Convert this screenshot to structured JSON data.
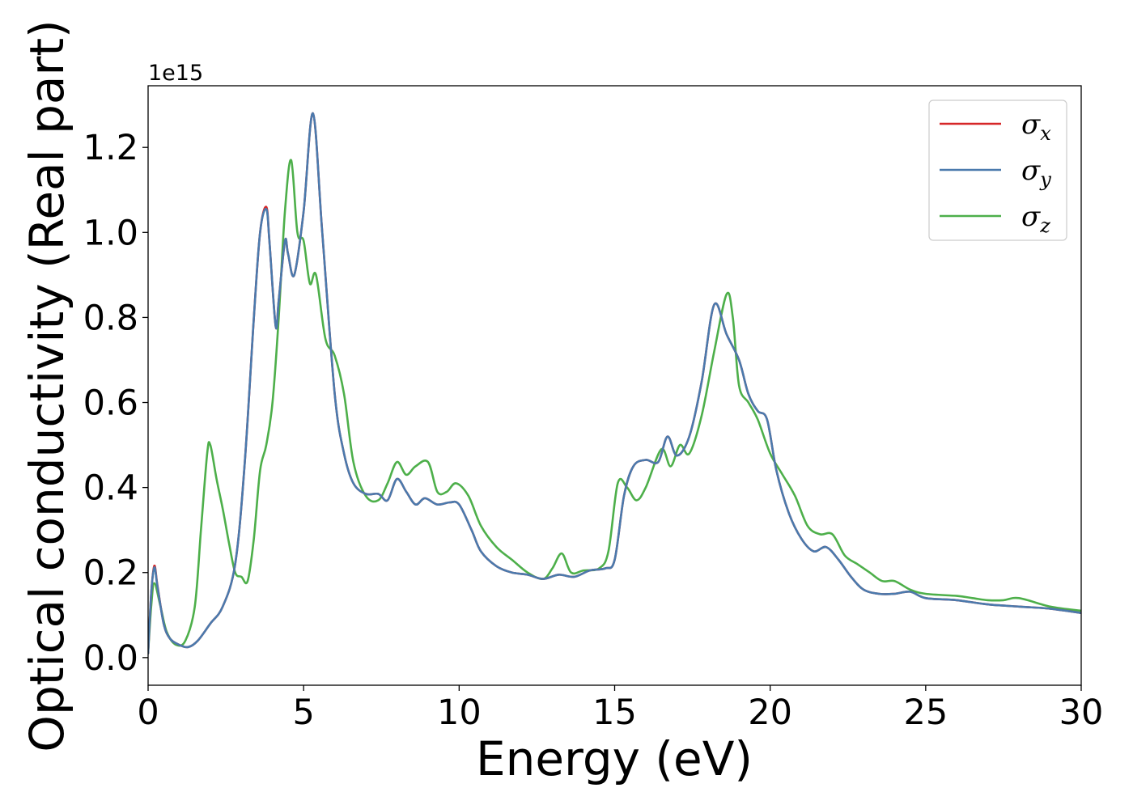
{
  "chart_data": {
    "type": "line",
    "xlabel": "Energy (eV)",
    "ylabel": "Optical conductivity (Real part)",
    "y_offset_label": "1e15",
    "xlim": [
      0,
      30
    ],
    "ylim": [
      -0.065,
      1.345
    ],
    "x_ticks": [
      0,
      5,
      10,
      15,
      20,
      25,
      30
    ],
    "x_tick_labels": [
      "0",
      "5",
      "10",
      "15",
      "20",
      "25",
      "30"
    ],
    "y_ticks": [
      0.0,
      0.2,
      0.4,
      0.6,
      0.8,
      1.0,
      1.2
    ],
    "y_tick_labels": [
      "0.0",
      "0.2",
      "0.4",
      "0.6",
      "0.8",
      "1.0",
      "1.2"
    ],
    "grid": false,
    "legend_position": "top-right",
    "series": [
      {
        "name": "σx",
        "symbol": "σ",
        "subscript": "x",
        "color": "#d62728",
        "x": [
          0,
          0.1,
          0.2,
          0.3,
          0.5,
          0.7,
          1.0,
          1.3,
          1.6,
          2.0,
          2.4,
          2.8,
          3.1,
          3.4,
          3.6,
          3.8,
          3.9,
          4.1,
          4.2,
          4.4,
          4.5,
          4.7,
          5.0,
          5.3,
          5.6,
          6.0,
          6.3,
          6.6,
          7.0,
          7.4,
          7.7,
          8.0,
          8.3,
          8.6,
          8.9,
          9.3,
          9.7,
          10.0,
          10.4,
          10.7,
          11.2,
          11.7,
          12.2,
          12.7,
          13.2,
          13.7,
          14.2,
          14.7,
          15.0,
          15.3,
          15.6,
          16.0,
          16.4,
          16.7,
          17.0,
          17.4,
          17.8,
          18.2,
          18.6,
          19.0,
          19.3,
          19.6,
          19.9,
          20.2,
          20.6,
          21.0,
          21.4,
          21.8,
          22.2,
          22.6,
          23.0,
          23.5,
          24.0,
          24.5,
          25.0,
          26.0,
          27.0,
          28.0,
          29.0,
          30.0
        ],
        "y": [
          0.01,
          0.15,
          0.216,
          0.17,
          0.08,
          0.045,
          0.03,
          0.025,
          0.04,
          0.08,
          0.12,
          0.22,
          0.45,
          0.8,
          1.0,
          1.06,
          0.98,
          0.78,
          0.84,
          0.98,
          0.95,
          0.9,
          1.05,
          1.28,
          1.0,
          0.62,
          0.48,
          0.41,
          0.385,
          0.385,
          0.37,
          0.42,
          0.39,
          0.36,
          0.375,
          0.36,
          0.365,
          0.36,
          0.3,
          0.25,
          0.215,
          0.2,
          0.195,
          0.185,
          0.195,
          0.19,
          0.205,
          0.21,
          0.23,
          0.38,
          0.45,
          0.465,
          0.46,
          0.52,
          0.475,
          0.52,
          0.65,
          0.83,
          0.76,
          0.7,
          0.62,
          0.58,
          0.56,
          0.44,
          0.34,
          0.28,
          0.25,
          0.26,
          0.23,
          0.19,
          0.16,
          0.15,
          0.15,
          0.155,
          0.14,
          0.135,
          0.125,
          0.12,
          0.115,
          0.105
        ]
      },
      {
        "name": "σy",
        "symbol": "σ",
        "subscript": "y",
        "color": "#4a7aad",
        "x": [
          0,
          0.1,
          0.2,
          0.3,
          0.5,
          0.7,
          1.0,
          1.3,
          1.6,
          2.0,
          2.4,
          2.8,
          3.1,
          3.4,
          3.6,
          3.8,
          3.9,
          4.1,
          4.2,
          4.4,
          4.5,
          4.7,
          5.0,
          5.3,
          5.6,
          6.0,
          6.3,
          6.6,
          7.0,
          7.4,
          7.7,
          8.0,
          8.3,
          8.6,
          8.9,
          9.3,
          9.7,
          10.0,
          10.4,
          10.7,
          11.2,
          11.7,
          12.2,
          12.7,
          13.2,
          13.7,
          14.2,
          14.7,
          15.0,
          15.3,
          15.6,
          16.0,
          16.4,
          16.7,
          17.0,
          17.4,
          17.8,
          18.2,
          18.6,
          19.0,
          19.3,
          19.6,
          19.9,
          20.2,
          20.6,
          21.0,
          21.4,
          21.8,
          22.2,
          22.6,
          23.0,
          23.5,
          24.0,
          24.5,
          25.0,
          26.0,
          27.0,
          28.0,
          29.0,
          30.0
        ],
        "y": [
          0.01,
          0.15,
          0.212,
          0.168,
          0.08,
          0.045,
          0.03,
          0.025,
          0.04,
          0.08,
          0.12,
          0.22,
          0.45,
          0.8,
          1.0,
          1.055,
          0.98,
          0.78,
          0.84,
          0.98,
          0.95,
          0.9,
          1.05,
          1.28,
          1.0,
          0.62,
          0.48,
          0.41,
          0.385,
          0.385,
          0.37,
          0.42,
          0.39,
          0.36,
          0.375,
          0.36,
          0.365,
          0.36,
          0.3,
          0.25,
          0.215,
          0.2,
          0.195,
          0.185,
          0.195,
          0.19,
          0.205,
          0.21,
          0.23,
          0.38,
          0.45,
          0.465,
          0.46,
          0.52,
          0.475,
          0.52,
          0.65,
          0.83,
          0.76,
          0.7,
          0.62,
          0.58,
          0.56,
          0.44,
          0.34,
          0.28,
          0.25,
          0.26,
          0.23,
          0.19,
          0.16,
          0.15,
          0.15,
          0.155,
          0.14,
          0.135,
          0.125,
          0.12,
          0.115,
          0.105
        ]
      },
      {
        "name": "σz",
        "symbol": "σ",
        "subscript": "z",
        "color": "#4daf4a",
        "x": [
          0,
          0.1,
          0.2,
          0.4,
          0.6,
          0.9,
          1.2,
          1.5,
          1.7,
          1.9,
          2.0,
          2.2,
          2.4,
          2.6,
          2.8,
          3.0,
          3.2,
          3.4,
          3.6,
          3.8,
          4.0,
          4.2,
          4.4,
          4.6,
          4.8,
          5.0,
          5.2,
          5.4,
          5.7,
          6.0,
          6.3,
          6.6,
          7.0,
          7.4,
          7.7,
          8.0,
          8.3,
          8.6,
          9.0,
          9.3,
          9.6,
          9.9,
          10.3,
          10.7,
          11.2,
          11.7,
          12.2,
          12.7,
          13.0,
          13.3,
          13.6,
          14.0,
          14.5,
          14.8,
          15.1,
          15.4,
          15.7,
          16.0,
          16.5,
          16.8,
          17.1,
          17.4,
          17.8,
          18.2,
          18.6,
          18.8,
          19.0,
          19.3,
          19.6,
          20.0,
          20.4,
          20.8,
          21.2,
          21.6,
          22.0,
          22.4,
          22.8,
          23.2,
          23.6,
          24.0,
          24.5,
          25.0,
          26.0,
          26.5,
          27.0,
          27.5,
          28.0,
          29.0,
          30.0
        ],
        "y": [
          0.01,
          0.12,
          0.175,
          0.12,
          0.06,
          0.03,
          0.04,
          0.12,
          0.3,
          0.48,
          0.5,
          0.42,
          0.35,
          0.27,
          0.2,
          0.19,
          0.18,
          0.28,
          0.44,
          0.5,
          0.6,
          0.8,
          1.05,
          1.17,
          1.0,
          0.98,
          0.88,
          0.9,
          0.75,
          0.71,
          0.62,
          0.46,
          0.38,
          0.37,
          0.41,
          0.46,
          0.43,
          0.45,
          0.46,
          0.39,
          0.39,
          0.41,
          0.38,
          0.31,
          0.26,
          0.23,
          0.2,
          0.185,
          0.21,
          0.245,
          0.2,
          0.205,
          0.21,
          0.25,
          0.41,
          0.4,
          0.37,
          0.4,
          0.49,
          0.45,
          0.5,
          0.48,
          0.57,
          0.72,
          0.855,
          0.8,
          0.64,
          0.6,
          0.56,
          0.48,
          0.43,
          0.38,
          0.31,
          0.29,
          0.29,
          0.24,
          0.22,
          0.2,
          0.18,
          0.18,
          0.16,
          0.15,
          0.145,
          0.14,
          0.135,
          0.135,
          0.14,
          0.12,
          0.11
        ]
      }
    ]
  }
}
